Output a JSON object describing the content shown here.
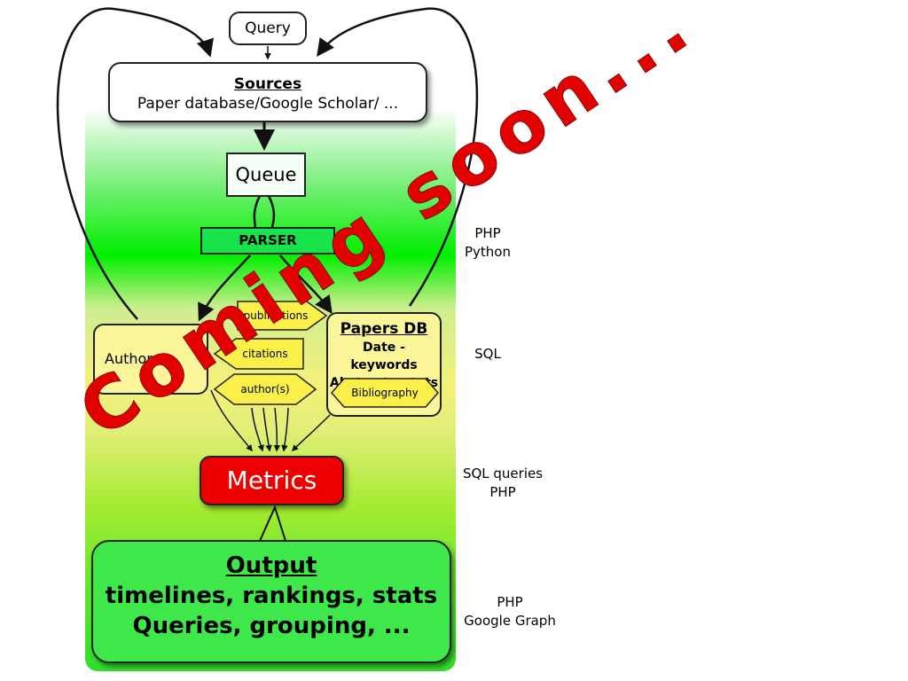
{
  "nodes": {
    "query": "Query",
    "sources_title": "Sources",
    "sources_sub": "Paper database/Google Scholar/ ...",
    "queue": "Queue",
    "parser": "PARSER",
    "authors": "Authors",
    "publications": "publications",
    "citations": "citations",
    "authors_tag": "author(s)",
    "papers_title": "Papers DB",
    "papers_line1": "Date - keywords",
    "papers_line2": "Abstract - stats",
    "bibliography": "Bibliography",
    "metrics": "Metrics",
    "output_title": "Output",
    "output_line1": "timelines, rankings, stats",
    "output_line2": "Queries, grouping, ..."
  },
  "tech": {
    "parser_1": "PHP",
    "parser_2": "Python",
    "db": "SQL",
    "metrics_1": "SQL queries",
    "metrics_2": "PHP",
    "output_1": "PHP",
    "output_2": "Google Graph"
  },
  "watermark": "Coming soon...",
  "colors": {
    "metrics": "#ee0000",
    "watermark": "#e30000",
    "parser": "#19e34b",
    "hex_fill": "#fbef4a"
  }
}
